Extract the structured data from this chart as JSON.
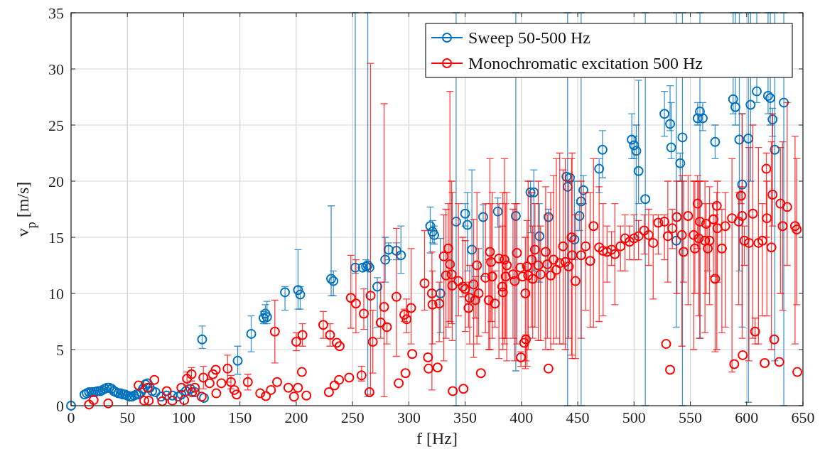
{
  "chart_data": {
    "type": "scatter",
    "xlabel": "f [Hz]",
    "ylabel": "v$_{p}$ [m/s]",
    "xlim": [
      0,
      650
    ],
    "xticks": [
      0,
      50,
      100,
      150,
      200,
      250,
      300,
      350,
      400,
      450,
      500,
      550,
      600,
      650
    ],
    "ylim": [
      0,
      35
    ],
    "yticks": [
      0,
      5,
      10,
      15,
      20,
      25,
      30,
      35
    ],
    "grid": true,
    "legend": "top right",
    "marker": "circle",
    "series": [
      {
        "name": "Sweep 50-500 Hz",
        "color": "#0072bd",
        "x": [
          0,
          12,
          14,
          16,
          18,
          20,
          22,
          24,
          26,
          28,
          30,
          32,
          34,
          36,
          38,
          40,
          42,
          44,
          46,
          48,
          50,
          52,
          54,
          56,
          58,
          60,
          62,
          64,
          66,
          68,
          70,
          72,
          75,
          80,
          85,
          90,
          95,
          98,
          102,
          106,
          110,
          116.4,
          118,
          148,
          160,
          171,
          172.5,
          174,
          190,
          201.6,
          203.5,
          231,
          233,
          252.4,
          259,
          262,
          263.5,
          265,
          272,
          279,
          282,
          289,
          293,
          319,
          321,
          322.5,
          328,
          342,
          350,
          352,
          356,
          366,
          379,
          395,
          408,
          411,
          416,
          424,
          440,
          441,
          443,
          447,
          451.5,
          453,
          455,
          469,
          472,
          498,
          500,
          502,
          504,
          510,
          527,
          532,
          533,
          537.5,
          541,
          543,
          556.5,
          558.5,
          561,
          572,
          588,
          590,
          593.5,
          596,
          601.5,
          603.5,
          609,
          619,
          621,
          623,
          625,
          633
        ],
        "values": [
          0,
          1.0,
          1.1,
          1.2,
          1.2,
          1.2,
          1.25,
          1.3,
          1.3,
          1.4,
          1.5,
          1.6,
          1.6,
          1.5,
          1.3,
          1.2,
          1.1,
          1.1,
          1.0,
          1.0,
          0.9,
          0.8,
          0.8,
          0.9,
          1.0,
          1.0,
          1.2,
          1.5,
          1.9,
          2.0,
          1.6,
          1.3,
          1.2,
          0.8,
          0.9,
          0.9,
          0.8,
          1.0,
          1.3,
          1.5,
          1.2,
          5.9,
          0.7,
          4.0,
          6.4,
          7.8,
          8.2,
          7.9,
          10.1,
          10.3,
          9.9,
          11.3,
          11.1,
          12.3,
          12.3,
          12.4,
          12.5,
          12.3,
          10.6,
          13.0,
          13.9,
          13.8,
          13.4,
          16.0,
          15.5,
          15.2,
          10.0,
          16.4,
          17.1,
          16.1,
          13.9,
          16.8,
          17.3,
          16.9,
          19.0,
          19.0,
          15.1,
          16.8,
          20.4,
          19.5,
          20.3,
          14.8,
          16.9,
          18.2,
          19.2,
          21.1,
          22.8,
          23.7,
          23.2,
          22.7,
          20.9,
          18.4,
          26.0,
          25.1,
          23.0,
          14.7,
          21.6,
          23.9,
          25.6,
          26.2,
          25.6,
          23.5,
          27.3,
          26.6,
          23.7,
          19.7,
          23.8,
          26.8,
          28.0,
          27.6,
          27.4,
          25.5,
          22.8,
          27.0
        ],
        "errors": [
          null,
          null,
          null,
          null,
          null,
          null,
          null,
          null,
          null,
          null,
          null,
          null,
          null,
          null,
          null,
          null,
          null,
          null,
          null,
          null,
          null,
          null,
          null,
          null,
          null,
          null,
          null,
          null,
          null,
          null,
          null,
          null,
          null,
          null,
          null,
          null,
          null,
          null,
          null,
          null,
          null,
          [
            5.1,
            7.1
          ],
          null,
          [
            2.8,
            5.3
          ],
          [
            4.8,
            8.0
          ],
          [
            7.3,
            8.4
          ],
          [
            7.5,
            9.0
          ],
          [
            7.3,
            9.3
          ],
          [
            8.5,
            10.6
          ],
          [
            8.6,
            13.9
          ],
          [
            8.6,
            10.6
          ],
          [
            9.8,
            17.8
          ],
          [
            9.8,
            12.0
          ],
          [
            11.8,
            35
          ],
          null,
          [
            12.0,
            13.0
          ],
          [
            0.8,
            35
          ],
          null,
          [
            7.0,
            11.4
          ],
          [
            11.0,
            15.0
          ],
          [
            13.0,
            14.5
          ],
          [
            13.0,
            14.5
          ],
          [
            11.8,
            16.0
          ],
          [
            13.6,
            17.7
          ],
          [
            14.5,
            16.5
          ],
          [
            14.4,
            16.0
          ],
          [
            6.5,
            14.9
          ],
          [
            0,
            35
          ],
          [
            16.0,
            18.0
          ],
          [
            12.0,
            19.0
          ],
          [
            9.6,
            21.0
          ],
          [
            11.5,
            17.9
          ],
          [
            15.9,
            18.5
          ],
          [
            3.1,
            35
          ],
          [
            15.4,
            20.0
          ],
          [
            12.0,
            21.0
          ],
          [
            11.0,
            18.0
          ],
          [
            12.0,
            17.5
          ],
          null,
          [
            0,
            35
          ],
          null,
          [
            13.0,
            20.0
          ],
          [
            15.6,
            18.0
          ],
          [
            0,
            35
          ],
          [
            18.0,
            20.5
          ],
          [
            19.0,
            22.0
          ],
          [
            20.3,
            24.5
          ],
          [
            22.0,
            26.0
          ],
          [
            22.0,
            24.0
          ],
          [
            15.0,
            25.0
          ],
          [
            18.0,
            29.0
          ],
          [
            0,
            35
          ],
          [
            24.0,
            28.0
          ],
          [
            24.5,
            28.5
          ],
          [
            22.0,
            27.0
          ],
          [
            7.0,
            35
          ],
          [
            20.0,
            22.5
          ],
          [
            0,
            35
          ],
          [
            25.0,
            27.0
          ],
          [
            6.0,
            35
          ],
          [
            24.5,
            27.0
          ],
          [
            22.0,
            25.0
          ],
          [
            26.0,
            35
          ],
          [
            25.0,
            35
          ],
          [
            12.0,
            35
          ],
          [
            7.0,
            26.0
          ],
          [
            0.3,
            35
          ],
          [
            20.0,
            35
          ],
          [
            27.0,
            35
          ],
          [
            26.0,
            35
          ],
          [
            25.0,
            35
          ],
          [
            24.0,
            26.5
          ],
          [
            4.0,
            35
          ],
          [
            0,
            35
          ]
        ]
      },
      {
        "name": "Monochromatic excitation 500 Hz",
        "color": "#ff0000",
        "x": [
          16,
          20,
          33,
          60,
          65,
          68,
          69,
          74,
          81,
          85,
          90,
          98,
          100.5,
          103,
          107,
          107.5,
          110,
          116,
          117.5,
          123,
          126,
          128.5,
          129,
          133.5,
          139,
          142,
          145,
          147,
          157,
          168,
          173,
          177.5,
          181,
          183,
          193,
          198,
          200,
          201.5,
          205,
          205.5,
          209,
          224,
          229,
          230,
          234,
          236,
          238,
          238.5,
          247,
          248.5,
          253,
          258,
          260,
          265,
          266,
          268,
          275,
          278,
          280.5,
          289,
          291,
          297,
          296,
          298,
          302,
          303,
          314,
          317,
          317.5,
          320.5,
          321,
          325.5,
          327,
          331,
          333,
          335,
          336.5,
          338,
          338.5,
          339,
          344,
          348,
          348.5,
          350,
          353,
          354,
          357.5,
          359,
          360.5,
          362,
          364,
          368,
          371,
          372,
          373,
          374,
          376.5,
          380,
          383,
          383.5,
          385,
          386,
          387,
          392.5,
          394,
          396,
          399,
          401,
          399.5,
          403.5,
          402.5,
          404,
          405,
          406,
          409,
          410,
          412,
          415,
          417,
          421.5,
          423,
          424,
          426,
          428.5,
          431,
          434,
          437,
          439,
          442,
          444.5,
          445,
          448,
          453,
          457,
          461,
          464,
          469,
          472.5,
          476,
          480,
          483,
          488,
          492,
          496,
          500,
          504,
          509,
          513,
          517,
          521.5,
          527,
          528.5,
          530,
          532,
          534,
          538,
          542.5,
          544,
          548,
          553,
          554,
          556.5,
          557.5,
          558.5,
          563,
          564,
          565.5,
          567,
          570.5,
          572,
          573.5,
          574,
          578,
          581,
          587,
          589,
          593,
          595,
          596,
          596.5,
          598,
          602,
          605.5,
          607.5,
          610.5,
          614,
          616,
          617.5,
          618,
          622,
          623,
          624.5,
          629,
          630,
          632,
          636,
          643,
          644.5,
          645
        ],
        "values": [
          0.1,
          0.5,
          0.2,
          1.8,
          0.45,
          1.6,
          0.45,
          2.3,
          0.4,
          1.3,
          0.45,
          1.6,
          0.5,
          2.4,
          2.8,
          1.2,
          1.6,
          0.8,
          2.5,
          2.0,
          2.8,
          3.2,
          1.1,
          2.0,
          3.3,
          2.1,
          1.4,
          1.0,
          2.1,
          1.1,
          0.85,
          1.4,
          6.6,
          2.1,
          1.6,
          0.8,
          5.7,
          1.6,
          3.0,
          6.3,
          0.9,
          7.2,
          1.2,
          6.3,
          1.8,
          5.6,
          2.3,
          5.3,
          2.5,
          9.6,
          9.1,
          2.7,
          8.2,
          1.2,
          9.8,
          5.7,
          7.4,
          8.8,
          7.0,
          9.7,
          2.0,
          2.9,
          8.1,
          7.7,
          8.7,
          4.6,
          10.9,
          4.3,
          3.3,
          10.0,
          9.0,
          3.4,
          9.1,
          13.3,
          11.6,
          14.0,
          12.6,
          11.7,
          10.7,
          1.3,
          11.1,
          10.6,
          1.5,
          10.4,
          8.7,
          9.6,
          10.8,
          9.4,
          12.5,
          10.0,
          2.9,
          11.4,
          9.4,
          13.7,
          12.8,
          11.5,
          9.1,
          13.1,
          10.6,
          10.1,
          13.0,
          11.5,
          12.5,
          11.7,
          11.1,
          13.6,
          12.3,
          11.5,
          4.3,
          10.0,
          5.6,
          5.9,
          12.4,
          11.6,
          13.0,
          11.3,
          13.9,
          12.5,
          11.7,
          13.7,
          12.6,
          3.3,
          11.6,
          13.0,
          12.1,
          12.7,
          14.2,
          12.8,
          12.4,
          15.0,
          13.4,
          11.1,
          13.4,
          14.2,
          12.9,
          16.0,
          14.1,
          13.8,
          13.7,
          13.9,
          13.5,
          14.2,
          14.9,
          14.6,
          14.9,
          15.1,
          15.6,
          15.2,
          14.5,
          16.3,
          16.4,
          5.5,
          15.1,
          3.2,
          15.8,
          16.8,
          15.2,
          13.7,
          16.9,
          15.2,
          14.0,
          18.0,
          14.9,
          16.4,
          14.7,
          16.2,
          14.0,
          14.7,
          16.6,
          11.3,
          17.8,
          15.8,
          14.0,
          16.0,
          16.7,
          3.7,
          16.4,
          18.7,
          16.9,
          4.5,
          14.7,
          14.5,
          17.1,
          6.6,
          14.5,
          14.7,
          3.8,
          21.1,
          16.7,
          14.1,
          18.8,
          5.9,
          3.9,
          18.0,
          16.0,
          17.7,
          16.0,
          15.7,
          3.0
        ],
        "errors": [
          null,
          null,
          null,
          null,
          null,
          null,
          null,
          null,
          null,
          null,
          null,
          null,
          null,
          0.6,
          0.6,
          null,
          null,
          null,
          1.0,
          null,
          null,
          null,
          null,
          null,
          1.2,
          0.6,
          null,
          null,
          0.7,
          null,
          null,
          null,
          2.8,
          null,
          null,
          null,
          0.8,
          null,
          null,
          1.0,
          null,
          1.2,
          null,
          1.0,
          null,
          null,
          null,
          null,
          null,
          [
            6.9,
            13.4
          ],
          [
            6.5,
            13.0
          ],
          [
            2.2,
            3.5
          ],
          [
            6.8,
            10.4
          ],
          null,
          [
            1.0,
            30.5
          ],
          [
            2.9,
            8.5
          ],
          [
            6.0,
            11.0
          ],
          [
            0.8,
            26.9
          ],
          [
            5.5,
            7.3
          ],
          [
            4.4,
            15.8
          ],
          null,
          null,
          [
            7.5,
            8.6
          ],
          [
            6.5,
            9.5
          ],
          [
            5.5,
            14.0
          ],
          null,
          [
            8.5,
            15.6
          ],
          null,
          null,
          [
            1.4,
            13.7
          ],
          [
            5.5,
            12.0
          ],
          null,
          [
            5.7,
            11.0
          ],
          [
            4.0,
            17.0
          ],
          [
            6.0,
            17.5
          ],
          [
            7.0,
            18.0
          ],
          [
            7.5,
            28.0
          ],
          [
            7.3,
            20.0
          ],
          [
            5.8,
            19.0
          ],
          null,
          [
            8.0,
            18.0
          ],
          [
            9.7,
            15.0
          ],
          null,
          [
            6.6,
            14.7
          ],
          [
            7.0,
            11.0
          ],
          [
            5.5,
            12.5
          ],
          [
            4.3,
            16.6
          ],
          [
            7.8,
            11.5
          ],
          [
            5.5,
            19.0
          ],
          [
            6.2,
            14.0
          ],
          null,
          [
            6.5,
            18.0
          ],
          [
            5.0,
            13.0
          ],
          [
            5.0,
            22.0
          ],
          [
            7.5,
            18.0
          ],
          [
            6.0,
            19.0
          ],
          [
            7.0,
            12.0
          ],
          [
            4.2,
            18.0
          ],
          [
            6.0,
            16.0
          ],
          [
            5.0,
            19.0
          ],
          [
            5.5,
            22.0
          ],
          [
            6.0,
            18.0
          ],
          [
            4.0,
            19.0
          ],
          [
            6.0,
            17.5
          ],
          [
            4.0,
            18.0
          ],
          [
            5.5,
            18.0
          ],
          null,
          null,
          [
            3.5,
            4.8
          ],
          [
            3.3,
            15.0
          ],
          null,
          [
            4.0,
            6.3
          ],
          [
            3.5,
            16.5
          ],
          [
            5.0,
            20.0
          ],
          [
            7.0,
            19.0
          ],
          [
            6.0,
            16.0
          ],
          [
            7.0,
            18.0
          ],
          [
            5.8,
            20.0
          ],
          [
            5.8,
            16.0
          ],
          [
            5.0,
            19.5
          ],
          [
            6.0,
            17.0
          ],
          null,
          [
            5.0,
            19.0
          ],
          [
            5.5,
            20.5
          ],
          [
            6.0,
            22.0
          ],
          [
            5.5,
            22.5
          ],
          [
            5.5,
            21.0
          ],
          [
            5.0,
            22.0
          ],
          [
            6.0,
            20.0
          ],
          [
            4.5,
            22.0
          ],
          [
            4.2,
            22.5
          ],
          [
            4.2,
            17.0
          ],
          [
            6.0,
            20.0
          ],
          [
            8.5,
            19.0
          ],
          [
            7.0,
            19.0
          ],
          [
            7.0,
            22.0
          ],
          [
            7.5,
            19.5
          ],
          [
            8.0,
            18.0
          ],
          [
            11.0,
            16.0
          ],
          [
            12.5,
            15.5
          ],
          [
            9.0,
            18.0
          ],
          [
            12.0,
            16.0
          ],
          [
            12.0,
            17.0
          ],
          [
            13.0,
            16.0
          ],
          [
            13.0,
            17.0
          ],
          [
            13.0,
            16.5
          ],
          [
            13.5,
            17.0
          ],
          [
            12.5,
            17.5
          ],
          [
            9.5,
            17.0
          ],
          [
            13.5,
            17.0
          ],
          [
            13.0,
            17.0
          ],
          null,
          [
            11.0,
            20.0
          ],
          null,
          [
            14.0,
            17.5
          ],
          [
            10.0,
            20.0
          ],
          [
            5.3,
            20.5
          ],
          [
            11.0,
            20.0
          ],
          [
            9.0,
            20.5
          ],
          [
            5.0,
            20.0
          ],
          [
            10.0,
            20.0
          ],
          [
            14.0,
            20.5
          ],
          [
            8.0,
            20.0
          ],
          [
            6.0,
            20.0
          ],
          [
            6.5,
            20.0
          ],
          [
            10.0,
            18.0
          ],
          [
            12.0,
            16.0
          ],
          [
            9.0,
            19.5
          ],
          [
            11.5,
            18.0
          ],
          [
            4.8,
            17.0
          ],
          [
            5.0,
            19.0
          ],
          [
            11.0,
            20.0
          ],
          [
            6.5,
            17.5
          ],
          [
            7.0,
            19.0
          ],
          [
            3.0,
            22.0
          ],
          null,
          [
            9.0,
            19.0
          ],
          [
            18.0,
            19.5
          ],
          [
            6.0,
            26.0
          ],
          null,
          [
            12.5,
            16.0
          ],
          [
            4.0,
            23.0
          ],
          [
            6.0,
            25.0
          ],
          [
            5.5,
            7.8
          ],
          [
            5.5,
            23.0
          ],
          [
            8.0,
            18.0
          ],
          null,
          [
            15.0,
            22.5
          ],
          [
            8.0,
            20.0
          ],
          [
            5.0,
            23.5
          ],
          [
            16.0,
            26.0
          ],
          null,
          null,
          [
            10.0,
            23.0
          ],
          [
            8.5,
            23.5
          ],
          [
            12.5,
            27.0
          ],
          [
            5.5,
            24.0
          ],
          [
            9.0,
            22.0
          ],
          null
        ]
      }
    ]
  }
}
